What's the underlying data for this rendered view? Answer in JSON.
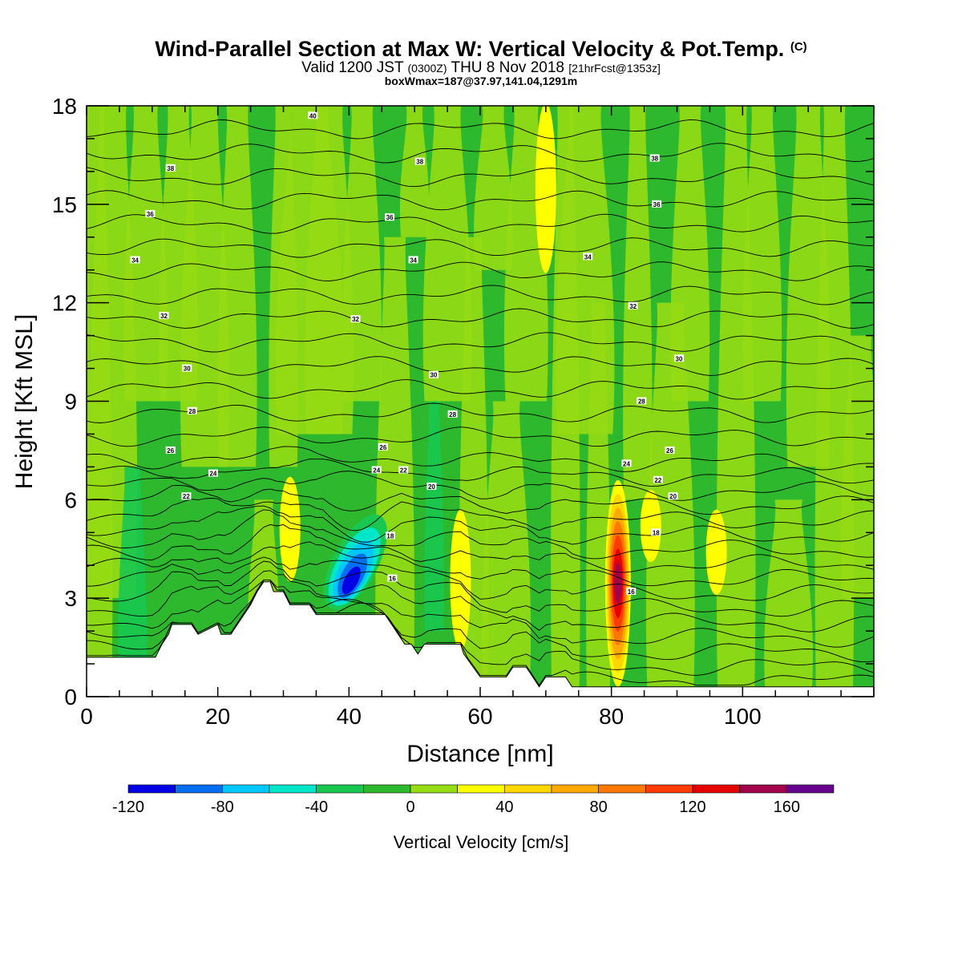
{
  "header": {
    "title": "Wind-Parallel Section at Max W: Vertical Velocity & Pot.Temp.",
    "title_mark": "(C)",
    "valid_prefix": "Valid 1200 JST",
    "valid_utc": "(0300Z)",
    "valid_date": "THU 8 Nov 2018",
    "forecast_note": "[21hrFcst@1353z]",
    "box_info": "boxWmax=187@37.97,141.04,1291m"
  },
  "chart_data": {
    "type": "heatmap",
    "xlabel": "Distance [nm]",
    "ylabel": "Height [Kft MSL]",
    "xlim": [
      0,
      120
    ],
    "ylim": [
      0,
      18
    ],
    "x_ticks": [
      0,
      20,
      40,
      60,
      80,
      100
    ],
    "y_ticks": [
      0,
      3,
      6,
      9,
      12,
      15,
      18
    ],
    "colorbar": {
      "label": "Vertical Velocity [cm/s]",
      "bounds": [
        -120,
        -100,
        -80,
        -60,
        -40,
        -20,
        0,
        20,
        40,
        60,
        80,
        100,
        120,
        140,
        160,
        180
      ],
      "tick_labels": [
        "-120",
        "-80",
        "-40",
        "0",
        "40",
        "80",
        "120",
        "160"
      ],
      "tick_values": [
        -120,
        -80,
        -40,
        0,
        40,
        80,
        120,
        160
      ],
      "colors": [
        "#0000e6",
        "#0070f0",
        "#00c8ff",
        "#00e6c8",
        "#18c850",
        "#2db82d",
        "#96dc14",
        "#ffff00",
        "#ffd700",
        "#ffaa00",
        "#ff7800",
        "#ff3c00",
        "#e60000",
        "#a0004b",
        "#64008c"
      ]
    },
    "background_level_color": "#2db82d",
    "updraft_cores": [
      {
        "x": 31,
        "y_bottom": 3.6,
        "y_top": 6.6,
        "w_max": 40
      },
      {
        "x": 57,
        "y_bottom": 1.5,
        "y_top": 5.6,
        "w_max": 40
      },
      {
        "x": 70,
        "y_bottom": 13,
        "y_top": 18,
        "w_max": 40
      },
      {
        "x": 81,
        "y_bottom": 0.4,
        "y_top": 6.5,
        "w_max": 160
      },
      {
        "x": 86,
        "y_bottom": 4.2,
        "y_top": 6.2,
        "w_max": 40
      },
      {
        "x": 96,
        "y_bottom": 3.2,
        "y_top": 5.6,
        "w_max": 40
      }
    ],
    "downdraft_cores": [
      {
        "x": 41,
        "y_bottom": 2.6,
        "y_top": 5.6,
        "w_min": -120
      }
    ],
    "terrain": {
      "x": [
        0,
        10.5,
        11.5,
        12.5,
        13,
        16,
        17,
        20,
        20.5,
        22,
        23,
        24,
        25,
        26,
        27,
        28,
        28.5,
        30,
        31,
        34,
        35,
        37,
        38,
        45.5,
        46.5,
        47.5,
        48.5,
        49.5,
        50.5,
        51.5,
        52.5,
        57,
        57.5,
        60,
        61,
        64,
        65,
        67,
        68,
        69,
        70,
        73,
        74,
        75,
        76,
        78,
        79,
        80,
        81,
        84,
        86,
        88,
        90,
        95,
        98,
        100,
        106,
        110,
        114,
        120
      ],
      "height": [
        1.2,
        1.2,
        1.6,
        1.9,
        2.2,
        2.2,
        1.9,
        2.2,
        1.9,
        1.9,
        2.2,
        2.5,
        2.8,
        3.2,
        3.5,
        3.5,
        3.2,
        3.2,
        2.8,
        2.8,
        2.5,
        2.5,
        2.5,
        2.5,
        2.2,
        1.9,
        1.6,
        1.6,
        1.3,
        1.6,
        1.6,
        1.6,
        1.3,
        0.6,
        0.6,
        0.6,
        0.9,
        0.9,
        0.6,
        0.3,
        0.6,
        0.6,
        0.3,
        0.3,
        0.3,
        0.3,
        0.3,
        0.3,
        0.3,
        0.3,
        0.3,
        0.3,
        0.3,
        0.3,
        0.3,
        0.3,
        0.3,
        0.3,
        0.3,
        0.3
      ]
    },
    "theta_contour_labels": [
      {
        "text": "40",
        "x": 34.5,
        "y": 17.7
      },
      {
        "text": "38",
        "x": 12.8,
        "y": 16.1
      },
      {
        "text": "38",
        "x": 50.8,
        "y": 16.3
      },
      {
        "text": "38",
        "x": 86.6,
        "y": 16.4
      },
      {
        "text": "36",
        "x": 9.7,
        "y": 14.7
      },
      {
        "text": "36",
        "x": 46.2,
        "y": 14.6
      },
      {
        "text": "36",
        "x": 86.9,
        "y": 15.0
      },
      {
        "text": "34",
        "x": 7.4,
        "y": 13.3
      },
      {
        "text": "34",
        "x": 49.8,
        "y": 13.3
      },
      {
        "text": "34",
        "x": 76.4,
        "y": 13.4
      },
      {
        "text": "32",
        "x": 11.8,
        "y": 11.6
      },
      {
        "text": "32",
        "x": 41.0,
        "y": 11.5
      },
      {
        "text": "32",
        "x": 83.3,
        "y": 11.9
      },
      {
        "text": "30",
        "x": 15.3,
        "y": 10.0
      },
      {
        "text": "30",
        "x": 52.9,
        "y": 9.8
      },
      {
        "text": "30",
        "x": 90.3,
        "y": 10.3
      },
      {
        "text": "28",
        "x": 16.1,
        "y": 8.7
      },
      {
        "text": "28",
        "x": 55.8,
        "y": 8.6
      },
      {
        "text": "28",
        "x": 84.6,
        "y": 9.0
      },
      {
        "text": "26",
        "x": 12.8,
        "y": 7.5
      },
      {
        "text": "26",
        "x": 45.2,
        "y": 7.6
      },
      {
        "text": "26",
        "x": 88.9,
        "y": 7.5
      },
      {
        "text": "24",
        "x": 19.3,
        "y": 6.8
      },
      {
        "text": "24",
        "x": 44.2,
        "y": 6.9
      },
      {
        "text": "24",
        "x": 82.3,
        "y": 7.1
      },
      {
        "text": "22",
        "x": 15.2,
        "y": 6.1
      },
      {
        "text": "22",
        "x": 48.3,
        "y": 6.9
      },
      {
        "text": "22",
        "x": 87.1,
        "y": 6.6
      },
      {
        "text": "20",
        "x": 52.6,
        "y": 6.4
      },
      {
        "text": "20",
        "x": 89.4,
        "y": 6.1
      },
      {
        "text": "18",
        "x": 46.3,
        "y": 4.9
      },
      {
        "text": "18",
        "x": 86.8,
        "y": 5.0
      },
      {
        "text": "16",
        "x": 46.6,
        "y": 3.6
      },
      {
        "text": "16",
        "x": 83.0,
        "y": 3.2
      }
    ]
  }
}
